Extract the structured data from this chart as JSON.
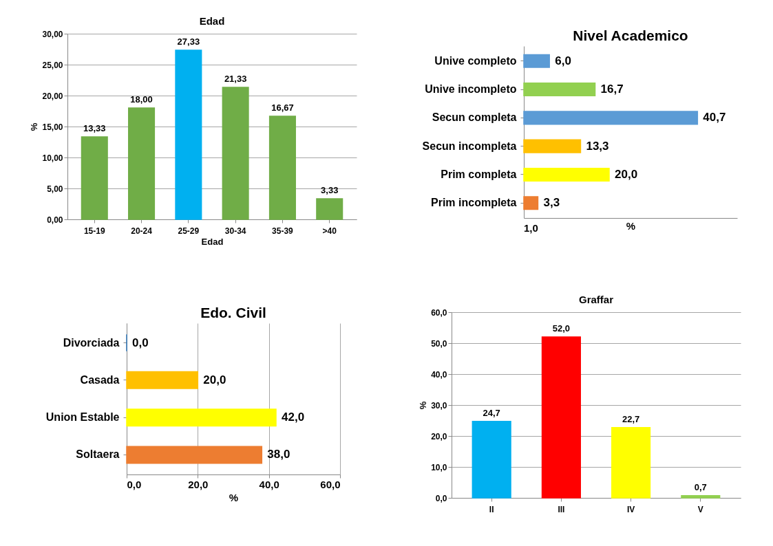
{
  "chart_data": [
    {
      "type": "bar",
      "title": "Edad",
      "xlabel": "Edad",
      "ylabel": "%",
      "categories": [
        "15-19",
        "20-24",
        "25-29",
        "30-34",
        "35-39",
        ">40"
      ],
      "values": [
        13.33,
        18.0,
        27.33,
        21.33,
        16.67,
        3.33
      ],
      "colors": [
        "#70ad47",
        "#70ad47",
        "#00b0f0",
        "#70ad47",
        "#70ad47",
        "#70ad47"
      ],
      "value_labels": [
        "13,33",
        "18,00",
        "27,33",
        "21,33",
        "16,67",
        "3,33"
      ],
      "ylim": [
        0,
        30
      ],
      "yticks": [
        {
          "value": 0,
          "label": "0,00"
        },
        {
          "value": 5,
          "label": "5,00"
        },
        {
          "value": 10,
          "label": "10,00"
        },
        {
          "value": 15,
          "label": "15,00"
        },
        {
          "value": 20,
          "label": "20,00"
        },
        {
          "value": 25,
          "label": "25,00"
        },
        {
          "value": 30,
          "label": "30,00"
        }
      ],
      "grid": "y"
    },
    {
      "type": "bar",
      "orientation": "horizontal",
      "title": "Nivel Academico",
      "xlabel": "%",
      "categories": [
        "Unive  completo",
        "Unive  incompleto",
        "Secun completa",
        "Secun incompleta",
        "Prim completa",
        "Prim incompleta"
      ],
      "values": [
        6.0,
        16.7,
        40.7,
        13.3,
        20.0,
        3.3
      ],
      "colors": [
        "#5b9bd5",
        "#92d050",
        "#5b9bd5",
        "#ffc000",
        "#ffff00",
        "#ed7d31"
      ],
      "value_labels": [
        "6,0",
        "16,7",
        "40,7",
        "13,3",
        "20,0",
        "3,3"
      ],
      "xlim": [
        0,
        50
      ],
      "annotations": [
        "1,0"
      ]
    },
    {
      "type": "bar",
      "orientation": "horizontal",
      "title": "Edo. Civil",
      "xlabel": "%",
      "categories": [
        "Divorciada",
        "Casada",
        "Union Estable",
        "Soltaera"
      ],
      "values": [
        0.0,
        20.0,
        42.0,
        38.0
      ],
      "colors": [
        "#2e75b6",
        "#ffc000",
        "#ffff00",
        "#ed7d31"
      ],
      "value_labels": [
        "0,0",
        "20,0",
        "42,0",
        "38,0"
      ],
      "xlim": [
        0,
        60
      ],
      "xticks": [
        {
          "value": 0,
          "label": "0,0"
        },
        {
          "value": 20,
          "label": "20,0"
        },
        {
          "value": 40,
          "label": "40,0"
        },
        {
          "value": 60,
          "label": "60,0"
        }
      ],
      "grid": "x"
    },
    {
      "type": "bar",
      "title": "Graffar",
      "ylabel": "%",
      "categories": [
        "II",
        "III",
        "IV",
        "V"
      ],
      "values": [
        24.7,
        52.0,
        22.7,
        0.7
      ],
      "colors": [
        "#00b0f0",
        "#ff0000",
        "#ffff00",
        "#92d050"
      ],
      "value_labels": [
        "24,7",
        "52,0",
        "22,7",
        "0,7"
      ],
      "ylim": [
        0,
        60
      ],
      "yticks": [
        {
          "value": 0,
          "label": "0,0"
        },
        {
          "value": 10,
          "label": "10,0"
        },
        {
          "value": 20,
          "label": "20,0"
        },
        {
          "value": 30,
          "label": "30,0"
        },
        {
          "value": 40,
          "label": "40,0"
        },
        {
          "value": 50,
          "label": "50,0"
        },
        {
          "value": 60,
          "label": "60,0"
        }
      ],
      "grid": "y"
    }
  ]
}
